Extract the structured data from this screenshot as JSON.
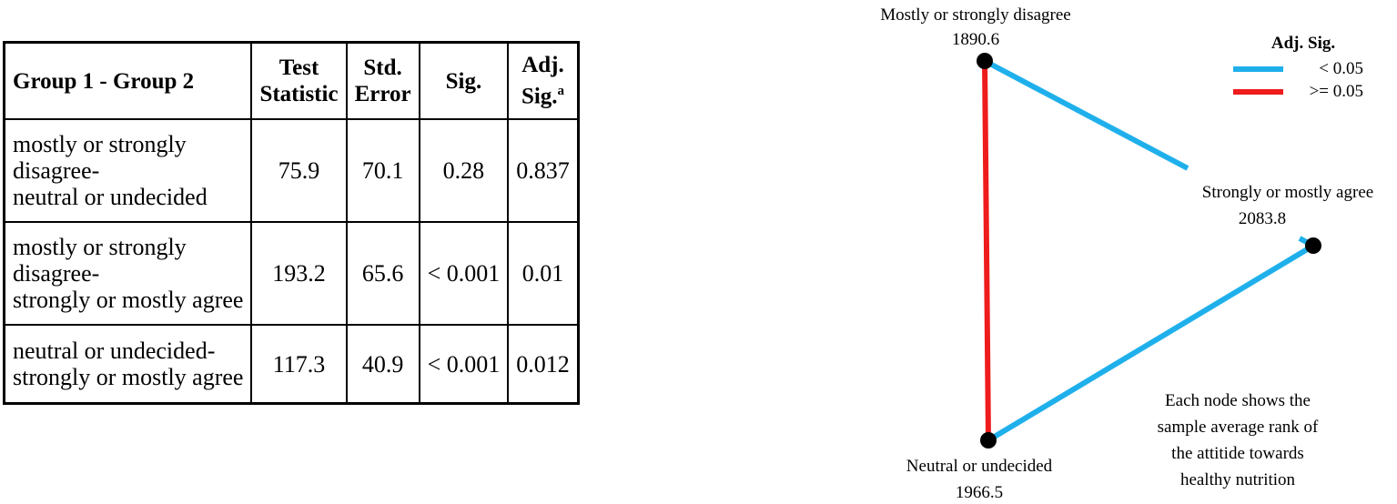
{
  "table": {
    "header": [
      "Group 1 - Group 2",
      "Test\nStatistic",
      "Std.\nError",
      "Sig.",
      "Adj.\nSig."
    ],
    "header_superscript": "a",
    "rows": [
      [
        "mostly or strongly\ndisagree-\nneutral or undecided",
        75.9,
        70.1,
        0.28,
        0.837
      ],
      [
        "mostly or strongly\ndisagree-\nstrongly or mostly agree",
        193.2,
        65.6,
        "< 0.001",
        0.01
      ],
      [
        "neutral or undecided-\nstrongly or mostly agree",
        117.3,
        40.9,
        "< 0.001",
        0.012
      ]
    ]
  },
  "diagram": {
    "nodes": [
      {
        "label": "Mostly or strongly disagree",
        "value": 1890.6
      },
      {
        "label": "Strongly or mostly agree",
        "value": 2083.8
      },
      {
        "label": "Neutral or undecided",
        "value": 1966.5
      }
    ],
    "legend": {
      "title": "Adj. Sig.",
      "items": [
        {
          "label": "< 0.05",
          "color": "#1fb0ec"
        },
        {
          "label": ">= 0.05",
          "color": "#ee1c1c"
        }
      ]
    },
    "note": "Each node shows the\nsample average rank of\nthe attitide towards\nhealthy nutrition"
  }
}
